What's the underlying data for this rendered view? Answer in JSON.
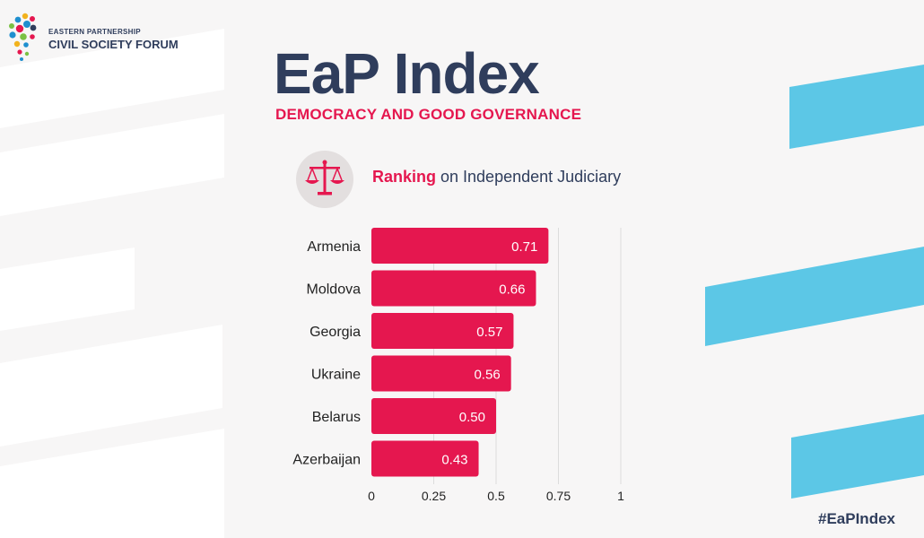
{
  "header": {
    "org_line1": "EASTERN PARTNERSHIP",
    "org_line2": "CIVIL SOCIETY FORUM",
    "title": "EaP Index",
    "subtitle": "DEMOCRACY AND GOOD GOVERNANCE"
  },
  "ranking": {
    "highlight": "Ranking",
    "rest": " on Independent Judiciary",
    "icon": "scales-of-justice-icon"
  },
  "hashtag": "#EaPIndex",
  "colors": {
    "bar": "#e5174f",
    "navy": "#2f3d5c",
    "accent_blue": "#5cc7e6",
    "gridline": "#dcdcdc"
  },
  "chart_data": {
    "type": "bar",
    "orientation": "horizontal",
    "title": "Ranking on Independent Judiciary",
    "categories": [
      "Armenia",
      "Moldova",
      "Georgia",
      "Ukraine",
      "Belarus",
      "Azerbaijan"
    ],
    "values": [
      0.71,
      0.66,
      0.57,
      0.56,
      0.5,
      0.43
    ],
    "value_labels": [
      "0.71",
      "0.66",
      "0.57",
      "0.56",
      "0.50",
      "0.43"
    ],
    "xlim": [
      0,
      1
    ],
    "xticks": [
      0,
      0.25,
      0.5,
      0.75,
      1
    ],
    "xtick_labels": [
      "0",
      "0.25",
      "0.5",
      "0.75",
      "1"
    ],
    "grid": true
  }
}
